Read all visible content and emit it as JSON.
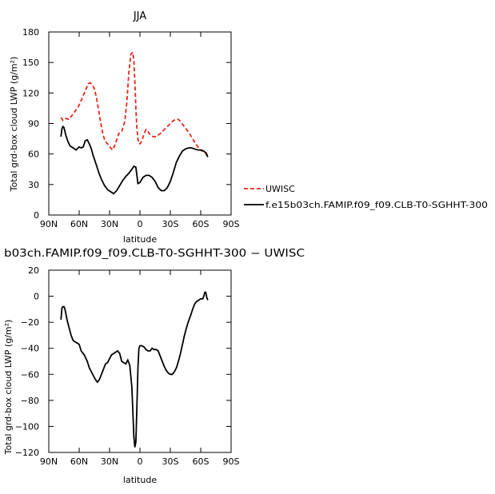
{
  "chart_data": [
    {
      "type": "line",
      "title": "JJA",
      "xlabel": "latitude",
      "ylabel": "Total grd-box cloud LWP (g/m²)",
      "xlim": [
        -90,
        90
      ],
      "ylim": [
        0,
        180
      ],
      "x_ticks": [
        -90,
        -60,
        -30,
        0,
        30,
        60,
        90
      ],
      "x_tick_labels": [
        "90N",
        "60N",
        "30N",
        "0",
        "30S",
        "60S",
        "90S"
      ],
      "y_ticks": [
        0,
        30,
        60,
        90,
        120,
        150,
        180
      ],
      "y_tick_labels": [
        "0",
        "30",
        "60",
        "90",
        "120",
        "150",
        "180"
      ],
      "grid": false,
      "legend_position": "right",
      "series": [
        {
          "name": "UWISC",
          "style": "dashed",
          "color": "#e8261c",
          "x": [
            -78,
            -76,
            -73,
            -70,
            -67,
            -64,
            -61,
            -57,
            -54,
            -51,
            -49,
            -47,
            -45,
            -43,
            -41,
            -39,
            -37,
            -35,
            -33,
            -31,
            -29,
            -27,
            -25,
            -23,
            -21,
            -18,
            -15,
            -13,
            -11,
            -9,
            -7,
            -6,
            -5,
            -4,
            -3,
            -2,
            -1,
            0,
            2,
            4,
            6,
            8,
            10,
            13,
            16,
            20,
            24,
            28,
            32,
            35,
            38,
            40,
            43,
            46,
            49,
            52,
            55,
            58,
            61,
            63,
            65,
            66,
            67
          ],
          "y": [
            96,
            93,
            95,
            94,
            98,
            102,
            106,
            115,
            122,
            129,
            130,
            128,
            124,
            116,
            104,
            92,
            82,
            74,
            71,
            69,
            66,
            64,
            68,
            74,
            80,
            82,
            92,
            110,
            140,
            158,
            160,
            152,
            130,
            105,
            85,
            75,
            70,
            70,
            73,
            80,
            84,
            82,
            79,
            77,
            77,
            80,
            84,
            88,
            92,
            94,
            94,
            92,
            88,
            84,
            80,
            75,
            70,
            66,
            63,
            63,
            62,
            60,
            57
          ]
        },
        {
          "name": "f.e15b03ch.FAMIP.f09_f09.CLB-T0-SGHHT-300",
          "style": "solid",
          "color": "#000000",
          "x": [
            -78,
            -77,
            -76,
            -75,
            -73,
            -71,
            -69,
            -66,
            -63,
            -60,
            -58,
            -56,
            -54,
            -52,
            -50,
            -48,
            -46,
            -44,
            -42,
            -40,
            -38,
            -35,
            -32,
            -29,
            -26,
            -23,
            -20,
            -17,
            -14,
            -11,
            -8,
            -6,
            -4,
            -2,
            0,
            3,
            6,
            9,
            12,
            15,
            18,
            21,
            24,
            27,
            30,
            33,
            36,
            39,
            42,
            45,
            48,
            51,
            54,
            57,
            60,
            63,
            65,
            66,
            67
          ],
          "y": [
            77,
            85,
            87,
            86,
            78,
            72,
            68,
            66,
            64,
            67,
            66,
            67,
            73,
            74,
            70,
            65,
            58,
            52,
            46,
            40,
            35,
            29,
            25,
            23,
            21,
            24,
            29,
            34,
            38,
            41,
            45,
            48,
            47,
            31,
            32,
            37,
            39,
            39,
            37,
            33,
            27,
            24,
            24,
            27,
            33,
            42,
            52,
            58,
            63,
            65,
            66,
            66,
            65,
            64,
            64,
            63,
            61,
            59,
            57
          ]
        }
      ]
    },
    {
      "type": "line",
      "title": "b03ch.FAMIP.f09_f09.CLB-T0-SGHHT-300 − UWISC",
      "xlabel": "latitude",
      "ylabel": "Total grd-box cloud LWP (g/m²)",
      "xlim": [
        -90,
        90
      ],
      "ylim": [
        -120,
        20
      ],
      "x_ticks": [
        -90,
        -60,
        -30,
        0,
        30,
        60,
        90
      ],
      "x_tick_labels": [
        "90N",
        "60N",
        "30N",
        "0",
        "30S",
        "60S",
        "90S"
      ],
      "y_ticks": [
        -120,
        -100,
        -80,
        -60,
        -40,
        -20,
        0,
        20
      ],
      "y_tick_labels": [
        "−120",
        "−100",
        "−80",
        "−60",
        "−40",
        "−20",
        "0",
        "20"
      ],
      "grid": false,
      "series": [
        {
          "style": "solid",
          "color": "#000000",
          "x": [
            -78,
            -77,
            -76,
            -75,
            -74,
            -72,
            -70,
            -68,
            -66,
            -64,
            -62,
            -60,
            -58,
            -55,
            -52,
            -50,
            -48,
            -46,
            -44,
            -42,
            -40,
            -38,
            -36,
            -34,
            -32,
            -30,
            -28,
            -26,
            -24,
            -22,
            -20,
            -18,
            -16,
            -14,
            -12,
            -10,
            -8,
            -7,
            -6,
            -5,
            -4,
            -3,
            -2,
            -1,
            0,
            2,
            4,
            6,
            8,
            10,
            12,
            14,
            16,
            18,
            20,
            22,
            24,
            26,
            28,
            30,
            32,
            34,
            36,
            38,
            40,
            42,
            44,
            46,
            48,
            50,
            52,
            54,
            56,
            58,
            60,
            62,
            63,
            64,
            65,
            66,
            67
          ],
          "y": [
            -18,
            -9,
            -8,
            -8,
            -10,
            -18,
            -24,
            -30,
            -34,
            -35,
            -36,
            -37,
            -42,
            -45,
            -50,
            -55,
            -58,
            -61,
            -64,
            -66,
            -64,
            -60,
            -56,
            -52,
            -51,
            -48,
            -45,
            -44,
            -43,
            -42,
            -44,
            -50,
            -51,
            -52,
            -49,
            -53,
            -70,
            -88,
            -108,
            -116,
            -112,
            -85,
            -55,
            -40,
            -38,
            -38,
            -39,
            -41,
            -42,
            -42,
            -40,
            -41,
            -41,
            -42,
            -46,
            -50,
            -54,
            -57,
            -59,
            -60,
            -60,
            -58,
            -55,
            -50,
            -44,
            -37,
            -30,
            -24,
            -19,
            -15,
            -10,
            -6,
            -4,
            -3,
            -2,
            -2,
            0,
            3,
            3,
            -1,
            -3
          ]
        }
      ]
    }
  ]
}
